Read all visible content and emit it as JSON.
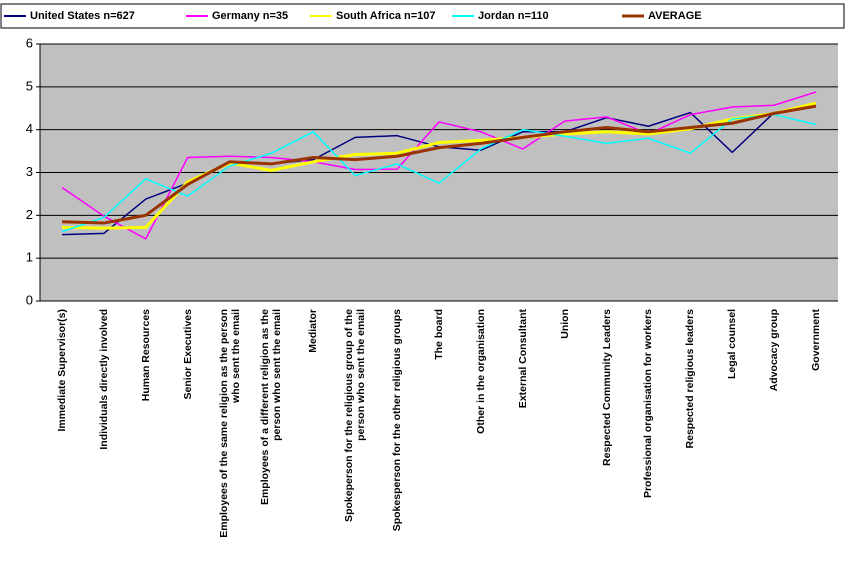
{
  "chart_data": {
    "type": "line",
    "categories": [
      "Immediate Supervisor(s)",
      "Individuals directly involved",
      "Human Resources",
      "Senior Executives",
      "Employees of the same religion as the person who sent the email",
      "Employees of a different religion as the person who sent the email",
      "Mediator",
      "Spokeperson for the religious group of the person who sent the email",
      "Spokesperson for the other religious groups",
      "The board",
      "Other in the organisation",
      "External Consultant",
      "Union",
      "Respected Community Leaders",
      "Professional organisation for workers",
      "Respected religious leaders",
      "Legal counsel",
      "Advocacy group",
      "Government"
    ],
    "series": [
      {
        "name": "United States n=627",
        "color": "#000080",
        "values": [
          1.55,
          1.58,
          2.38,
          2.75,
          3.25,
          3.2,
          3.3,
          3.82,
          3.86,
          3.6,
          3.52,
          3.95,
          3.95,
          4.28,
          4.08,
          4.4,
          3.47,
          4.4,
          4.55
        ]
      },
      {
        "name": "Germany n=35",
        "color": "#ff00ff",
        "values": [
          2.65,
          1.98,
          1.45,
          3.35,
          3.38,
          3.35,
          3.25,
          3.07,
          3.08,
          4.18,
          3.95,
          3.55,
          4.2,
          4.3,
          3.9,
          4.35,
          4.53,
          4.57,
          4.88
        ]
      },
      {
        "name": "South Africa n=107",
        "color": "#ffff00",
        "values": [
          1.72,
          1.7,
          1.72,
          2.78,
          3.22,
          3.05,
          3.25,
          3.42,
          3.45,
          3.7,
          3.75,
          3.82,
          3.9,
          3.95,
          3.9,
          4.02,
          4.25,
          4.38,
          4.62
        ]
      },
      {
        "name": "Jordan n=110",
        "color": "#00ffff",
        "values": [
          1.62,
          1.95,
          2.85,
          2.45,
          3.15,
          3.45,
          3.95,
          2.93,
          3.2,
          2.75,
          3.55,
          4.0,
          3.85,
          3.68,
          3.8,
          3.45,
          4.25,
          4.35,
          4.12
        ]
      },
      {
        "name": "AVERAGE",
        "color": "#993300",
        "values": [
          1.85,
          1.82,
          2.0,
          2.72,
          3.25,
          3.2,
          3.35,
          3.3,
          3.38,
          3.58,
          3.68,
          3.82,
          3.95,
          4.05,
          3.95,
          4.05,
          4.15,
          4.38,
          4.55
        ]
      }
    ],
    "ylim": [
      0,
      6
    ],
    "yticks": [
      0,
      1,
      2,
      3,
      4,
      5,
      6
    ],
    "grid": true,
    "legend": "top"
  }
}
